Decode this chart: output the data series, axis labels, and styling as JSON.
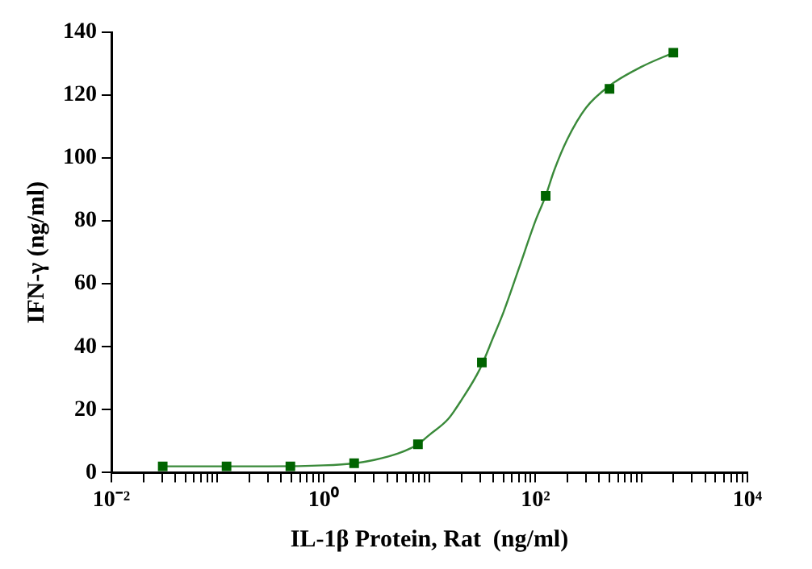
{
  "chart_data": {
    "type": "scatter",
    "xlabel": "IL-1β Protein, Rat  (ng/ml)",
    "ylabel": "IFN-γ (ng/ml)",
    "log": "x",
    "grid": false,
    "marker": "square",
    "xlim": [
      0.01,
      10000
    ],
    "ylim": [
      0,
      140
    ],
    "xticks": [
      {
        "value": 0.01,
        "label": "10⁻²"
      },
      {
        "value": 0.02,
        "label": null
      },
      {
        "value": 0.03,
        "label": null
      },
      {
        "value": 0.04,
        "label": null
      },
      {
        "value": 0.05,
        "label": null
      },
      {
        "value": 0.06,
        "label": null
      },
      {
        "value": 0.07,
        "label": null
      },
      {
        "value": 0.08,
        "label": null
      },
      {
        "value": 0.09,
        "label": null
      },
      {
        "value": 0.1,
        "label": null
      },
      {
        "value": 0.2,
        "label": null
      },
      {
        "value": 0.3,
        "label": null
      },
      {
        "value": 0.4,
        "label": null
      },
      {
        "value": 0.5,
        "label": null
      },
      {
        "value": 0.6,
        "label": null
      },
      {
        "value": 0.7,
        "label": null
      },
      {
        "value": 0.8,
        "label": null
      },
      {
        "value": 0.9,
        "label": null
      },
      {
        "value": 1,
        "label": "10⁰"
      },
      {
        "value": 2,
        "label": null
      },
      {
        "value": 3,
        "label": null
      },
      {
        "value": 4,
        "label": null
      },
      {
        "value": 5,
        "label": null
      },
      {
        "value": 6,
        "label": null
      },
      {
        "value": 7,
        "label": null
      },
      {
        "value": 8,
        "label": null
      },
      {
        "value": 9,
        "label": null
      },
      {
        "value": 10,
        "label": null
      },
      {
        "value": 20,
        "label": null
      },
      {
        "value": 30,
        "label": null
      },
      {
        "value": 40,
        "label": null
      },
      {
        "value": 50,
        "label": null
      },
      {
        "value": 60,
        "label": null
      },
      {
        "value": 70,
        "label": null
      },
      {
        "value": 80,
        "label": null
      },
      {
        "value": 90,
        "label": null
      },
      {
        "value": 100,
        "label": "10²"
      },
      {
        "value": 200,
        "label": null
      },
      {
        "value": 300,
        "label": null
      },
      {
        "value": 400,
        "label": null
      },
      {
        "value": 500,
        "label": null
      },
      {
        "value": 600,
        "label": null
      },
      {
        "value": 700,
        "label": null
      },
      {
        "value": 800,
        "label": null
      },
      {
        "value": 900,
        "label": null
      },
      {
        "value": 1000,
        "label": null
      },
      {
        "value": 2000,
        "label": null
      },
      {
        "value": 3000,
        "label": null
      },
      {
        "value": 4000,
        "label": null
      },
      {
        "value": 5000,
        "label": null
      },
      {
        "value": 6000,
        "label": null
      },
      {
        "value": 7000,
        "label": null
      },
      {
        "value": 8000,
        "label": null
      },
      {
        "value": 9000,
        "label": null
      },
      {
        "value": 10000,
        "label": "10⁴"
      }
    ],
    "yticks": [
      0,
      20,
      40,
      60,
      80,
      100,
      120,
      140
    ],
    "series": [
      {
        "color": "#006400",
        "x": [
          0.0305,
          0.122,
          0.488,
          1.95,
          7.8,
          31.25,
          125,
          500,
          2000
        ],
        "values": [
          2,
          2,
          2,
          3,
          9,
          35,
          88,
          122,
          133.5
        ]
      },
      {
        "type": "line",
        "color": "#3a8a3a",
        "marker": "none",
        "x": [
          0.03,
          0.1,
          0.3,
          1,
          2,
          3,
          5,
          7.8,
          10,
          15,
          20,
          30,
          40,
          50,
          70,
          100,
          125,
          150,
          200,
          300,
          500,
          1000,
          2000
        ],
        "values": [
          2,
          2,
          2,
          2.3,
          3,
          4,
          6,
          9,
          12,
          17,
          23,
          33,
          43,
          51,
          65,
          80,
          88,
          96,
          106,
          116,
          123,
          129,
          133.5
        ]
      }
    ]
  }
}
